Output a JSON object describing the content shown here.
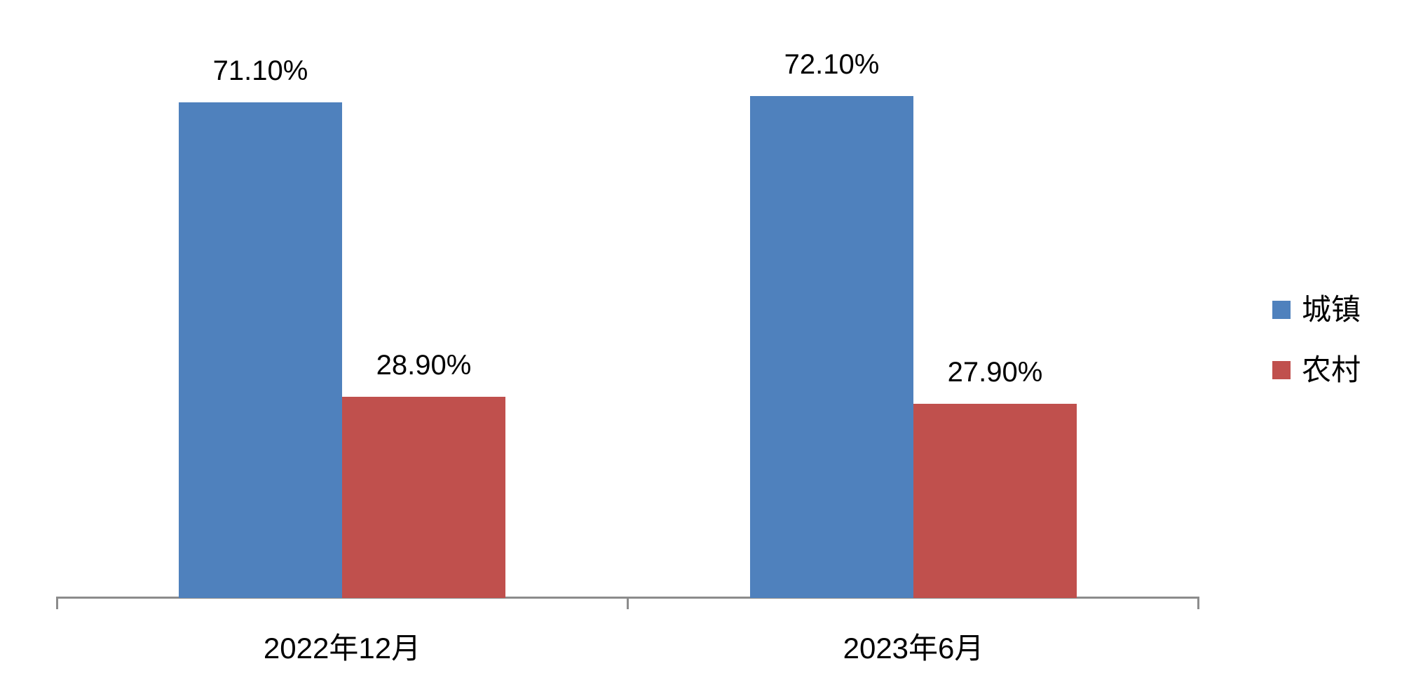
{
  "chart_data": {
    "type": "bar",
    "title": "",
    "xlabel": "",
    "ylabel": "",
    "categories": [
      "2022年12月",
      "2023年6月"
    ],
    "series": [
      {
        "name": "城镇",
        "color": "#4F81BD",
        "values": [
          71.1,
          72.1
        ],
        "value_labels": [
          "71.10%",
          "72.10%"
        ]
      },
      {
        "name": "农村",
        "color": "#C0504D",
        "values": [
          28.9,
          27.9
        ],
        "value_labels": [
          "28.90%",
          "27.90%"
        ]
      }
    ],
    "ylim": [
      0,
      80
    ],
    "grid": false,
    "legend_position": "right",
    "axis_color": "#8C8C8C",
    "label_color": "#000000",
    "background": "#FFFFFF"
  }
}
